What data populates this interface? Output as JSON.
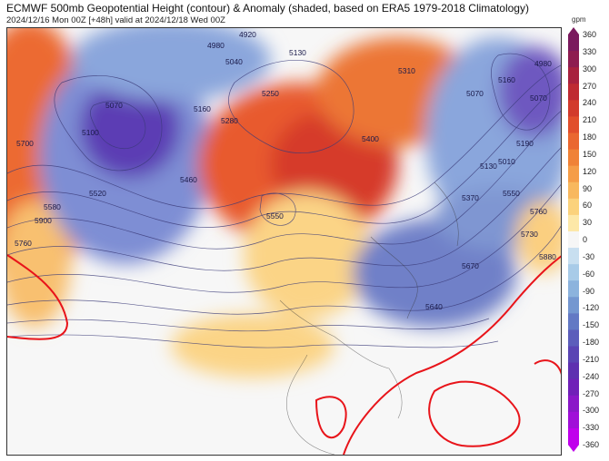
{
  "title": "ECMWF 500mb Geopotential Height (contour) & Anomaly (shaded, based on ERA5 1979-2018 Climatology)",
  "subtitle": "2024/12/16 Mon 00Z [+48h] valid at 2024/12/18 Wed 00Z",
  "colorbar": {
    "unit": "gpm",
    "ticks": [
      "360",
      "330",
      "300",
      "270",
      "240",
      "210",
      "180",
      "150",
      "120",
      "90",
      "60",
      "30",
      "0",
      "-30",
      "-60",
      "-90",
      "-120",
      "-150",
      "-180",
      "-210",
      "-240",
      "-270",
      "-300",
      "-330",
      "-360"
    ],
    "colors": [
      "#7a1a5e",
      "#8e1c50",
      "#a8213e",
      "#bf2a32",
      "#d23a2c",
      "#e14e2c",
      "#ea6730",
      "#f08237",
      "#f59d48",
      "#f8b85e",
      "#fbd27c",
      "#fde8a8",
      "#f6f6f6",
      "#c8dff0",
      "#a8cbe8",
      "#8cb3dd",
      "#7497d0",
      "#6379c4",
      "#5c5ebb",
      "#5a45b4",
      "#5e30b0",
      "#7020b8",
      "#8a18c8",
      "#a010d8",
      "#c000ec"
    ]
  },
  "contour_labels": [
    "4920",
    "4980",
    "5070",
    "5100",
    "5160",
    "5280",
    "5250",
    "5130",
    "5310",
    "5400",
    "5460",
    "5520",
    "5550",
    "5580",
    "5160",
    "5070",
    "4980",
    "5040",
    "5190",
    "5130",
    "5070",
    "5010",
    "5370",
    "5550",
    "5760",
    "5730",
    "5880",
    "5670",
    "5640",
    "5700",
    "5900",
    "5760"
  ],
  "map": {
    "highlight_contour_color": "#e8141a"
  }
}
